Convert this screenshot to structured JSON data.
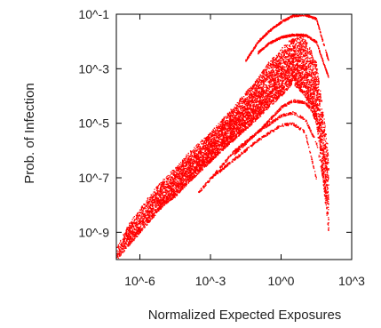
{
  "chart_data": {
    "type": "scatter",
    "title": "",
    "xlabel": "Normalized Expected Exposures",
    "ylabel": "Prob. of Infection",
    "xscale": "log",
    "yscale": "log",
    "xlim": [
      1e-07,
      1000.0
    ],
    "ylim": [
      1e-10,
      0.1
    ],
    "xticks": [
      {
        "value": 1e-06,
        "label": "10^-6"
      },
      {
        "value": 0.001,
        "label": "10^-3"
      },
      {
        "value": 1.0,
        "label": "10^0"
      },
      {
        "value": 1000.0,
        "label": "10^3"
      }
    ],
    "yticks": [
      {
        "value": 1e-09,
        "label": "10^-9"
      },
      {
        "value": 1e-07,
        "label": "10^-7"
      },
      {
        "value": 1e-05,
        "label": "10^-5"
      },
      {
        "value": 0.001,
        "label": "10^-3"
      },
      {
        "value": 0.1,
        "label": "10^-1"
      }
    ],
    "grid": false,
    "legend": "none",
    "marker_color": "#ff0000",
    "series": [
      {
        "shape": "dense cloud rising from lower-left to an upper-right peak",
        "x": [
          1e-07,
          3e-07,
          1e-06,
          3e-06,
          1e-05,
          3e-05,
          0.0001,
          0.0003,
          0.001,
          0.003,
          0.01,
          0.03,
          0.1,
          0.3,
          1.0,
          3.0,
          10.0,
          30.0,
          100.0
        ],
        "y_low": [
          1e-10,
          3e-10,
          1e-09,
          3e-09,
          1e-08,
          2e-08,
          6e-08,
          1.5e-07,
          4e-07,
          1e-06,
          2.5e-06,
          6e-06,
          1.5e-05,
          4e-05,
          0.0001,
          0.0003,
          0.0001,
          1e-05,
          1e-09
        ],
        "y_high": [
          3e-10,
          2e-09,
          8e-09,
          3e-08,
          1e-07,
          2.5e-07,
          8e-07,
          2e-06,
          5e-06,
          1.5e-05,
          5e-05,
          0.00015,
          0.0005,
          0.002,
          0.006,
          0.015,
          0.016,
          0.002,
          1e-06
        ]
      }
    ],
    "upper_arcs": [
      {
        "x": [
          0.03,
          0.1,
          0.3,
          1.0,
          3.0,
          10.0,
          30.0,
          100.0
        ],
        "y": [
          0.002,
          0.01,
          0.025,
          0.055,
          0.09,
          0.1,
          0.07,
          0.002
        ]
      },
      {
        "x": [
          0.1,
          0.3,
          1.0,
          3.0,
          10.0,
          30.0,
          100.0
        ],
        "y": [
          0.004,
          0.009,
          0.015,
          0.018,
          0.018,
          0.01,
          0.0005
        ]
      }
    ],
    "lower_arcs": [
      {
        "x": [
          0.0003,
          0.001,
          0.01,
          0.1,
          1.0,
          3.0,
          10.0,
          30.0
        ],
        "y": [
          3e-08,
          1e-07,
          5e-07,
          2.5e-06,
          9e-06,
          1e-05,
          5e-06,
          1e-07
        ]
      },
      {
        "x": [
          0.001,
          0.01,
          0.1,
          1.0,
          3.0,
          10.0,
          30.0,
          100.0
        ],
        "y": [
          1e-07,
          1e-06,
          5e-06,
          2e-05,
          2.5e-05,
          1.5e-05,
          2e-06,
          1e-08
        ]
      },
      {
        "x": [
          0.01,
          0.1,
          1.0,
          3.0,
          10.0,
          30.0,
          100.0
        ],
        "y": [
          8e-07,
          5e-06,
          4e-05,
          7e-05,
          6e-05,
          2e-05,
          1e-07
        ]
      }
    ]
  }
}
